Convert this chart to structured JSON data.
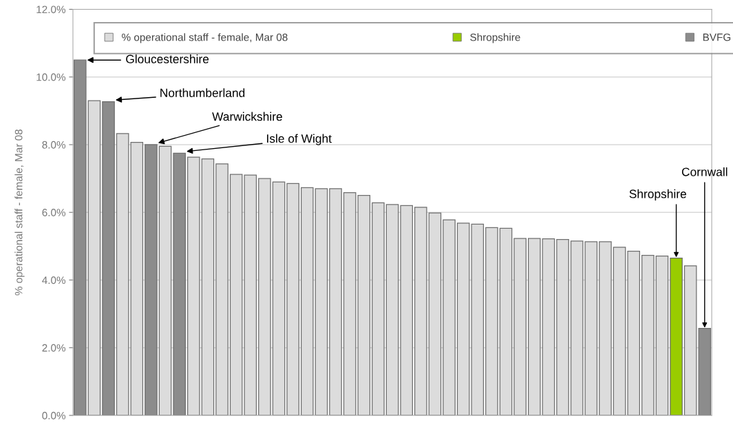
{
  "chart_data": {
    "type": "bar",
    "ylabel": "% operational staff - female, Mar 08",
    "categories": [
      null,
      null,
      null,
      null,
      null,
      null,
      null,
      null,
      null,
      null,
      null,
      null,
      null,
      null,
      null,
      null,
      null,
      null,
      null,
      null,
      null,
      null,
      null,
      null,
      null,
      null,
      null,
      null,
      null,
      null,
      null,
      null,
      null,
      null,
      null,
      null,
      null,
      null,
      null,
      null,
      null,
      null,
      null,
      null,
      null
    ],
    "series": [
      {
        "name": "% operational staff - female, Mar 08",
        "color": "#dcdcdc",
        "values": [
          null,
          9.3,
          null,
          8.33,
          8.07,
          null,
          7.95,
          null,
          7.63,
          7.58,
          7.43,
          7.12,
          7.1,
          7.0,
          6.9,
          6.85,
          6.73,
          6.7,
          6.7,
          6.58,
          6.5,
          6.28,
          6.23,
          6.2,
          6.15,
          5.98,
          5.78,
          5.68,
          5.65,
          5.55,
          5.53,
          5.23,
          5.23,
          5.22,
          5.2,
          5.15,
          5.13,
          5.13,
          4.97,
          4.85,
          4.73,
          4.71,
          null,
          4.42,
          null
        ]
      },
      {
        "name": "Shropshire",
        "color": "#99cc00",
        "values": [
          null,
          null,
          null,
          null,
          null,
          null,
          null,
          null,
          null,
          null,
          null,
          null,
          null,
          null,
          null,
          null,
          null,
          null,
          null,
          null,
          null,
          null,
          null,
          null,
          null,
          null,
          null,
          null,
          null,
          null,
          null,
          null,
          null,
          null,
          null,
          null,
          null,
          null,
          null,
          null,
          null,
          null,
          4.65,
          null,
          null
        ]
      },
      {
        "name": "BVFG",
        "color": "#8c8c8c",
        "values": [
          10.5,
          null,
          9.27,
          null,
          null,
          8.0,
          null,
          7.75,
          null,
          null,
          null,
          null,
          null,
          null,
          null,
          null,
          null,
          null,
          null,
          null,
          null,
          null,
          null,
          null,
          null,
          null,
          null,
          null,
          null,
          null,
          null,
          null,
          null,
          null,
          null,
          null,
          null,
          null,
          null,
          null,
          null,
          null,
          null,
          null,
          2.57
        ]
      }
    ],
    "ylim": [
      0,
      12
    ],
    "yticks": [
      {
        "value": 0,
        "label": "0.0%"
      },
      {
        "value": 2,
        "label": "2.0%"
      },
      {
        "value": 4,
        "label": "4.0%"
      },
      {
        "value": 6,
        "label": "6.0%"
      },
      {
        "value": 8,
        "label": "8.0%"
      },
      {
        "value": 10,
        "label": "10.0%"
      },
      {
        "value": 12,
        "label": "12.0%"
      }
    ],
    "grid": "y",
    "legend": "top",
    "annotations": [
      "Gloucestershire",
      "Northumberland",
      "Warwickshire",
      "Isle of Wight",
      "Shropshire",
      "Cornwall"
    ]
  }
}
